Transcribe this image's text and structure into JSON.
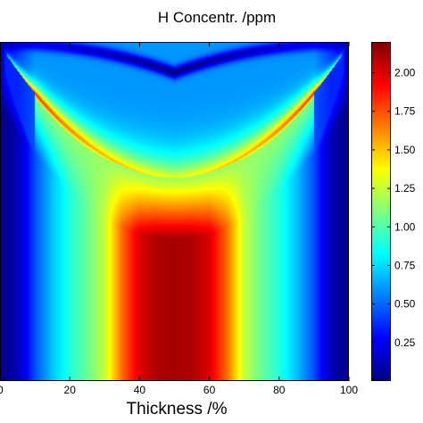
{
  "chart_data": {
    "type": "heatmap",
    "title": "H Concentr. /ppm",
    "xlabel": "Thickness /%",
    "ylabel": "",
    "xlim": [
      0,
      100
    ],
    "x_ticks": [
      "0",
      "20",
      "40",
      "60",
      "80",
      "100"
    ],
    "y_ticks": [],
    "colormap": "jet",
    "color_range": [
      0.0,
      2.2
    ],
    "colorbar_ticks": [
      "0.25",
      "0.50",
      "0.75",
      "1.00",
      "1.25",
      "1.50",
      "1.75",
      "2.00"
    ],
    "colorbar_tick_values": [
      0.25,
      0.5,
      0.75,
      1.0,
      1.25,
      1.5,
      1.75,
      2.0
    ],
    "grid": false,
    "field_description": {
      "surface_minimum_H_ppm": 0.05,
      "bulk_profile_bottom": {
        "x": [
          0,
          5,
          10,
          15,
          20,
          25,
          30,
          35,
          40,
          45,
          50,
          55,
          60,
          65,
          70,
          75,
          80,
          85,
          90,
          95,
          100
        ],
        "values": [
          0.05,
          0.2,
          0.45,
          0.7,
          0.9,
          1.05,
          1.25,
          1.7,
          2.0,
          2.1,
          2.12,
          2.1,
          2.0,
          1.7,
          1.25,
          1.05,
          0.9,
          0.7,
          0.45,
          0.2,
          0.05
        ]
      },
      "peak_front_value_ppm": 2.15,
      "central_plateau_top_ppm": 0.65
    }
  }
}
